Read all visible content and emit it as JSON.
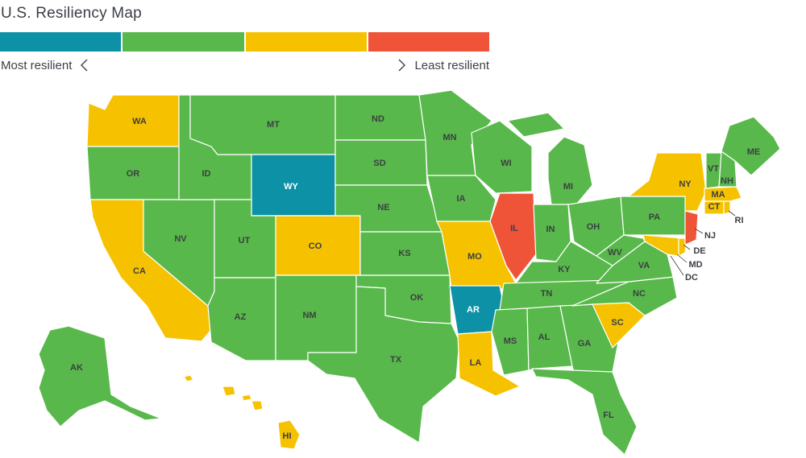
{
  "title": "U.S. Resiliency Map",
  "legend": {
    "left_label": "Most resilient",
    "right_label": "Least resilient",
    "left_icon": "chevron-left-icon",
    "right_icon": "chevron-right-icon",
    "scale": [
      {
        "tier": 1,
        "color": "#0c91a6"
      },
      {
        "tier": 2,
        "color": "#59b84b"
      },
      {
        "tier": 3,
        "color": "#f6c200"
      },
      {
        "tier": 4,
        "color": "#ef5338"
      }
    ]
  },
  "colors": {
    "teal": "#0c91a6",
    "green": "#59b84b",
    "yellow": "#f6c200",
    "red": "#ef5338",
    "border": "#ffffff",
    "label": "#3b3f44"
  },
  "states": {
    "WA": {
      "label": "WA",
      "tier": 3
    },
    "OR": {
      "label": "OR",
      "tier": 2
    },
    "CA": {
      "label": "CA",
      "tier": 3
    },
    "NV": {
      "label": "NV",
      "tier": 2
    },
    "ID": {
      "label": "ID",
      "tier": 2
    },
    "MT": {
      "label": "MT",
      "tier": 2
    },
    "WY": {
      "label": "WY",
      "tier": 1
    },
    "UT": {
      "label": "UT",
      "tier": 2
    },
    "CO": {
      "label": "CO",
      "tier": 3
    },
    "AZ": {
      "label": "AZ",
      "tier": 2
    },
    "NM": {
      "label": "NM",
      "tier": 2
    },
    "ND": {
      "label": "ND",
      "tier": 2
    },
    "SD": {
      "label": "SD",
      "tier": 2
    },
    "NE": {
      "label": "NE",
      "tier": 2
    },
    "KS": {
      "label": "KS",
      "tier": 2
    },
    "OK": {
      "label": "OK",
      "tier": 2
    },
    "TX": {
      "label": "TX",
      "tier": 2
    },
    "MN": {
      "label": "MN",
      "tier": 2
    },
    "IA": {
      "label": "IA",
      "tier": 2
    },
    "MO": {
      "label": "MO",
      "tier": 3
    },
    "AR": {
      "label": "AR",
      "tier": 1
    },
    "LA": {
      "label": "LA",
      "tier": 3
    },
    "WI": {
      "label": "WI",
      "tier": 2
    },
    "IL": {
      "label": "IL",
      "tier": 4
    },
    "MI": {
      "label": "MI",
      "tier": 2
    },
    "IN": {
      "label": "IN",
      "tier": 2
    },
    "OH": {
      "label": "OH",
      "tier": 2
    },
    "KY": {
      "label": "KY",
      "tier": 2
    },
    "TN": {
      "label": "TN",
      "tier": 2
    },
    "MS": {
      "label": "MS",
      "tier": 2
    },
    "AL": {
      "label": "AL",
      "tier": 2
    },
    "GA": {
      "label": "GA",
      "tier": 2
    },
    "FL": {
      "label": "FL",
      "tier": 2
    },
    "SC": {
      "label": "SC",
      "tier": 3
    },
    "NC": {
      "label": "NC",
      "tier": 2
    },
    "VA": {
      "label": "VA",
      "tier": 2
    },
    "WV": {
      "label": "WV",
      "tier": 2
    },
    "PA": {
      "label": "PA",
      "tier": 2
    },
    "NY": {
      "label": "NY",
      "tier": 3
    },
    "VT": {
      "label": "VT",
      "tier": 2
    },
    "NH": {
      "label": "NH",
      "tier": 2
    },
    "ME": {
      "label": "ME",
      "tier": 2
    },
    "MA": {
      "label": "MA",
      "tier": 3
    },
    "CT": {
      "label": "CT",
      "tier": 3
    },
    "RI": {
      "label": "RI",
      "tier": 3
    },
    "NJ": {
      "label": "NJ",
      "tier": 4
    },
    "DE": {
      "label": "DE",
      "tier": 3
    },
    "MD": {
      "label": "MD",
      "tier": 3
    },
    "DC": {
      "label": "DC",
      "tier": 3
    },
    "AK": {
      "label": "AK",
      "tier": 2
    },
    "HI": {
      "label": "HI",
      "tier": 3
    }
  }
}
